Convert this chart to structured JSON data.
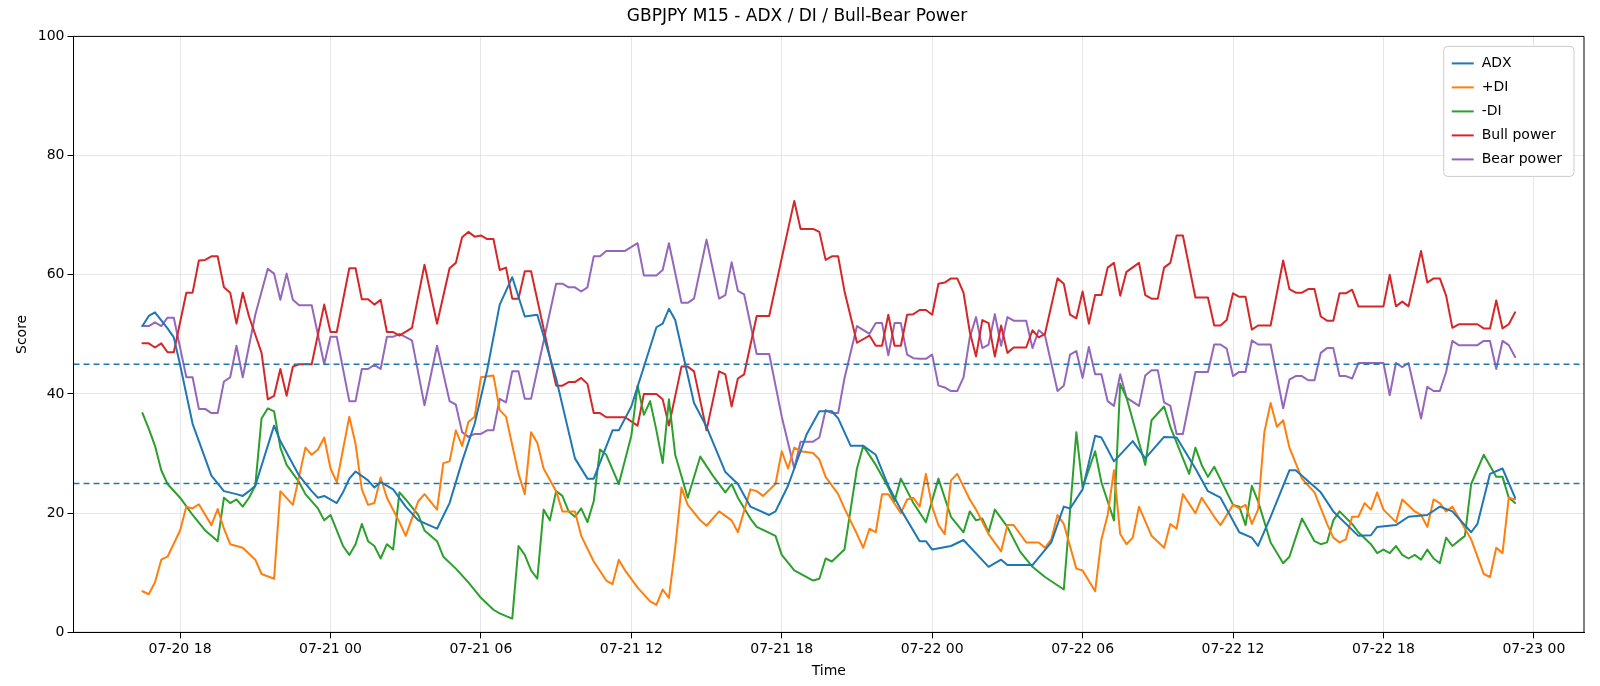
{
  "chart_data": {
    "type": "line",
    "title": "GBPJPY M15 - ADX / DI / Bull-Bear Power",
    "xlabel": "Time",
    "ylabel": "Score",
    "xlim": [
      "--07-20T13:45",
      "--07-23T02:00"
    ],
    "xticks": [
      {
        "value": "--07-20T18:00",
        "label": "07-20 18"
      },
      {
        "value": "--07-21T00:00",
        "label": "07-21 00"
      },
      {
        "value": "--07-21T06:00",
        "label": "07-21 06"
      },
      {
        "value": "--07-21T12:00",
        "label": "07-21 12"
      },
      {
        "value": "--07-21T18:00",
        "label": "07-21 18"
      },
      {
        "value": "--07-22T00:00",
        "label": "07-22 00"
      },
      {
        "value": "--07-22T06:00",
        "label": "07-22 06"
      },
      {
        "value": "--07-22T12:00",
        "label": "07-22 12"
      },
      {
        "value": "--07-22T18:00",
        "label": "07-22 18"
      },
      {
        "value": "--07-23T00:00",
        "label": "07-23 00"
      }
    ],
    "ylim": [
      0,
      100
    ],
    "yticks": [
      0,
      20,
      40,
      60,
      80,
      100
    ],
    "grid": true,
    "legend": "top right",
    "marker": "none",
    "line_style": "solid",
    "ref_lines": [
      {
        "axis": "y",
        "value": 45,
        "color": "#1f77b4",
        "line_style": "dashed"
      },
      {
        "axis": "y",
        "value": 25,
        "color": "#1f77b4",
        "line_style": "dashed"
      }
    ],
    "series": [
      {
        "name": "ADX",
        "color": "#1f77b4",
        "x": [
          "--07-20T16:30",
          "--07-20T16:45",
          "--07-20T17:00",
          "--07-20T17:30",
          "--07-20T17:45",
          "--07-20T18:00",
          "--07-20T18:30",
          "--07-20T19:15",
          "--07-20T19:45",
          "--07-20T20:15",
          "--07-20T20:30",
          "--07-20T20:45",
          "--07-20T21:00",
          "--07-20T21:45",
          "--07-20T22:00",
          "--07-20T22:45",
          "--07-20T23:15",
          "--07-20T23:30",
          "--07-20T23:45",
          "--07-21T00:15",
          "--07-21T00:30",
          "--07-21T00:45",
          "--07-21T01:00",
          "--07-21T01:30",
          "--07-21T01:45",
          "--07-21T02:00",
          "--07-21T02:30",
          "--07-21T03:00",
          "--07-21T03:30",
          "--07-21T04:15",
          "--07-21T04:45",
          "--07-21T05:15",
          "--07-21T05:45",
          "--07-21T06:15",
          "--07-21T06:45",
          "--07-21T07:15",
          "--07-21T07:45",
          "--07-21T08:15",
          "--07-21T09:00",
          "--07-21T09:45",
          "--07-21T10:15",
          "--07-21T10:30",
          "--07-21T11:15",
          "--07-21T11:30",
          "--07-21T12:00",
          "--07-21T13:00",
          "--07-21T13:15",
          "--07-21T13:30",
          "--07-21T13:45",
          "--07-21T14:30",
          "--07-21T15:00",
          "--07-21T15:45",
          "--07-21T16:15",
          "--07-21T16:45",
          "--07-21T17:30",
          "--07-21T17:45",
          "--07-21T18:15",
          "--07-21T19:00",
          "--07-21T19:30",
          "--07-21T20:00",
          "--07-21T20:15",
          "--07-21T20:45",
          "--07-21T21:15",
          "--07-21T21:45",
          "--07-21T22:15",
          "--07-21T22:45",
          "--07-21T23:30",
          "--07-21T23:45",
          "--07-22T00:00",
          "--07-22T00:45",
          "--07-22T01:15",
          "--07-22T02:15",
          "--07-22T02:45",
          "--07-22T03:00",
          "--07-22T04:00",
          "--07-22T04:45",
          "--07-22T05:15",
          "--07-22T05:30",
          "--07-22T06:00",
          "--07-22T06:30",
          "--07-22T06:45",
          "--07-22T07:15",
          "--07-22T08:00",
          "--07-22T08:30",
          "--07-22T09:15",
          "--07-22T09:45",
          "--07-22T10:30",
          "--07-22T11:00",
          "--07-22T11:30",
          "--07-22T12:15",
          "--07-22T12:45",
          "--07-22T13:00",
          "--07-22T13:30",
          "--07-22T14:15",
          "--07-22T14:30",
          "--07-22T15:30",
          "--07-22T16:00",
          "--07-22T17:00",
          "--07-22T17:30",
          "--07-22T17:45",
          "--07-22T18:30",
          "--07-22T19:00",
          "--07-22T19:45",
          "--07-22T20:15",
          "--07-22T20:45",
          "--07-22T21:30",
          "--07-22T21:45",
          "--07-22T22:15",
          "--07-22T22:45",
          "--07-22T23:15"
        ],
        "values": [
          51.4,
          53.1,
          53.7,
          51,
          49.5,
          44.9,
          35,
          26.3,
          23.7,
          23.2,
          22.9,
          23.7,
          24.6,
          34.7,
          32.1,
          26.3,
          23.7,
          22.6,
          22.9,
          21.7,
          23.5,
          25.8,
          27,
          25.5,
          24.3,
          25.2,
          24,
          21.1,
          18.8,
          17.4,
          21.7,
          28.7,
          35,
          44,
          55,
          59.6,
          53,
          53.3,
          42.6,
          29.2,
          25.8,
          25.8,
          33.9,
          33.9,
          37.9,
          51.2,
          51.8,
          54.3,
          52.4,
          38.5,
          34.5,
          26.9,
          24.9,
          21.1,
          19.7,
          20.3,
          24.6,
          33.3,
          37.1,
          37.1,
          35.9,
          31.3,
          31.3,
          29.8,
          24.6,
          20.6,
          15.3,
          15.3,
          13.9,
          14.5,
          15.5,
          11,
          12.2,
          11.3,
          11.3,
          15.1,
          21.1,
          20.8,
          24,
          33,
          32.7,
          28.7,
          32.1,
          29.2,
          32.8,
          32.7,
          27.5,
          23.7,
          22.6,
          16.8,
          15.9,
          14.5,
          19.4,
          27.2,
          27.2,
          23.5,
          20.3,
          16.2,
          16.3,
          17.7,
          18,
          19.4,
          19.7,
          21.1,
          20.3,
          16.8,
          18.2,
          26.6,
          27.5,
          22.6
        ]
      },
      {
        "name": "+DI",
        "color": "#ff7f0e",
        "x": [
          "--07-20T16:30",
          "--07-20T16:45",
          "--07-20T17:00",
          "--07-20T17:15",
          "--07-20T17:30",
          "--07-20T18:00",
          "--07-20T18:15",
          "--07-20T18:30",
          "--07-20T18:45",
          "--07-20T19:15",
          "--07-20T19:30",
          "--07-20T19:45",
          "--07-20T20:00",
          "--07-20T20:30",
          "--07-20T21:00",
          "--07-20T21:15",
          "--07-20T21:45",
          "--07-20T22:00",
          "--07-20T22:30",
          "--07-20T23:00",
          "--07-20T23:15",
          "--07-20T23:30",
          "--07-20T23:45",
          "--07-21T00:00",
          "--07-21T00:15",
          "--07-21T00:45",
          "--07-21T01:00",
          "--07-21T01:15",
          "--07-21T01:30",
          "--07-21T01:45",
          "--07-21T02:00",
          "--07-21T02:15",
          "--07-21T02:45",
          "--07-21T03:00",
          "--07-21T03:30",
          "--07-21T03:45",
          "--07-21T04:15",
          "--07-21T04:30",
          "--07-21T04:45",
          "--07-21T05:00",
          "--07-21T05:15",
          "--07-21T05:30",
          "--07-21T05:45",
          "--07-21T06:00",
          "--07-21T06:30",
          "--07-21T06:45",
          "--07-21T07:00",
          "--07-21T07:30",
          "--07-21T07:45",
          "--07-21T08:00",
          "--07-21T08:15",
          "--07-21T08:30",
          "--07-21T09:00",
          "--07-21T09:15",
          "--07-21T09:45",
          "--07-21T10:00",
          "--07-21T10:30",
          "--07-21T11:00",
          "--07-21T11:15",
          "--07-21T11:30",
          "--07-21T11:45",
          "--07-21T12:15",
          "--07-21T12:45",
          "--07-21T13:00",
          "--07-21T13:15",
          "--07-21T13:30",
          "--07-21T13:45",
          "--07-21T14:00",
          "--07-21T14:15",
          "--07-21T14:45",
          "--07-21T15:00",
          "--07-21T15:30",
          "--07-21T16:00",
          "--07-21T16:15",
          "--07-21T16:45",
          "--07-21T17:00",
          "--07-21T17:15",
          "--07-21T17:45",
          "--07-21T18:00",
          "--07-21T18:15",
          "--07-21T18:30",
          "--07-21T18:45",
          "--07-21T19:15",
          "--07-21T19:30",
          "--07-21T19:45",
          "--07-21T20:15",
          "--07-21T20:30",
          "--07-21T21:00",
          "--07-21T21:15",
          "--07-21T21:30",
          "--07-21T21:45",
          "--07-21T22:00",
          "--07-21T22:15",
          "--07-21T22:45",
          "--07-21T23:00",
          "--07-21T23:15",
          "--07-21T23:30",
          "--07-21T23:45",
          "--07-22T00:00",
          "--07-22T00:15",
          "--07-22T00:30",
          "--07-22T00:45",
          "--07-22T01:00",
          "--07-22T01:30",
          "--07-22T01:45",
          "--07-22T02:15",
          "--07-22T02:45",
          "--07-22T03:00",
          "--07-22T03:15",
          "--07-22T03:45",
          "--07-22T04:15",
          "--07-22T04:30",
          "--07-22T04:45",
          "--07-22T05:00",
          "--07-22T05:15",
          "--07-22T05:45",
          "--07-22T06:00",
          "--07-22T06:30",
          "--07-22T06:45",
          "--07-22T07:00",
          "--07-22T07:15",
          "--07-22T07:30",
          "--07-22T07:45",
          "--07-22T08:00",
          "--07-22T08:15",
          "--07-22T08:45",
          "--07-22T09:15",
          "--07-22T09:30",
          "--07-22T09:45",
          "--07-22T10:00",
          "--07-22T10:30",
          "--07-22T10:45",
          "--07-22T11:15",
          "--07-22T11:30",
          "--07-22T12:00",
          "--07-22T12:15",
          "--07-22T12:30",
          "--07-22T12:45",
          "--07-22T13:00",
          "--07-22T13:15",
          "--07-22T13:30",
          "--07-22T13:45",
          "--07-22T14:00",
          "--07-22T14:15",
          "--07-22T14:45",
          "--07-22T15:15",
          "--07-22T15:45",
          "--07-22T16:00",
          "--07-22T16:15",
          "--07-22T16:30",
          "--07-22T16:45",
          "--07-22T17:00",
          "--07-22T17:15",
          "--07-22T17:30",
          "--07-22T17:45",
          "--07-22T18:00",
          "--07-22T18:30",
          "--07-22T18:45",
          "--07-22T19:15",
          "--07-22T19:30",
          "--07-22T19:45",
          "--07-22T20:00",
          "--07-22T20:15",
          "--07-22T20:30",
          "--07-22T20:45",
          "--07-22T21:30",
          "--07-22T21:45",
          "--07-22T22:00",
          "--07-22T22:15",
          "--07-22T22:30",
          "--07-22T22:45",
          "--07-22T23:00",
          "--07-22T23:15"
        ],
        "values": [
          6.9,
          6.4,
          8.4,
          12.2,
          12.7,
          17.1,
          21.1,
          20.8,
          21.5,
          18,
          20.7,
          17.4,
          14.8,
          14.2,
          12.2,
          9.8,
          9,
          23.7,
          21.4,
          31,
          29.8,
          30.7,
          32.7,
          27.5,
          25.2,
          36.2,
          31.6,
          24,
          21.4,
          21.7,
          26,
          22.6,
          18.5,
          16.2,
          22,
          23.2,
          20.6,
          28.4,
          28.7,
          33.9,
          31.3,
          35.3,
          36.2,
          42.8,
          43.1,
          37.3,
          36.2,
          26.6,
          23.2,
          33.6,
          31.8,
          27.5,
          23.7,
          20.3,
          20.3,
          16.2,
          11.9,
          8.7,
          8.1,
          12.2,
          10.4,
          7.5,
          5.2,
          4.6,
          7.2,
          5.8,
          14.2,
          24.3,
          21.4,
          18.8,
          17.9,
          20.3,
          18.8,
          16.8,
          24,
          23.7,
          22.9,
          24.9,
          30.4,
          27.5,
          31,
          30.4,
          30.1,
          29,
          26.1,
          23.2,
          20.8,
          16.5,
          14.2,
          17.4,
          16.8,
          23.2,
          23.2,
          20,
          22.3,
          22.6,
          21.1,
          26.6,
          21.1,
          18,
          16.5,
          25.5,
          26.6,
          22.3,
          20.6,
          16.5,
          13.6,
          18,
          18,
          15.1,
          15.1,
          14.2,
          15.6,
          19.7,
          18.2,
          10.7,
          10.4,
          6.9,
          15.6,
          19.7,
          27.2,
          16.5,
          14.8,
          15.9,
          21.1,
          16.2,
          14.2,
          18.2,
          17.4,
          23.2,
          20,
          22.6,
          19.4,
          18,
          21.4,
          20.8,
          21.4,
          18.2,
          20.6,
          33.6,
          38.5,
          34.5,
          35.6,
          31,
          25.8,
          23.5,
          18.2,
          15.9,
          15.1,
          15.6,
          19.4,
          19.4,
          21.7,
          20.6,
          23.5,
          20.6,
          18.5,
          22.3,
          20.3,
          19.7,
          17.7,
          22.3,
          21.7,
          20.3,
          21.1,
          15.6,
          12.7,
          9.8,
          9.3,
          14.2,
          13.3,
          22.6,
          22.3
        ]
      },
      {
        "name": "-DI",
        "color": "#2ca02c",
        "x": [
          "--07-20T16:30",
          "--07-20T16:45",
          "--07-20T17:00",
          "--07-20T17:15",
          "--07-20T17:30",
          "--07-20T18:00",
          "--07-20T18:30",
          "--07-20T19:00",
          "--07-20T19:15",
          "--07-20T19:30",
          "--07-20T19:45",
          "--07-20T20:00",
          "--07-20T20:15",
          "--07-20T20:30",
          "--07-20T20:45",
          "--07-20T21:00",
          "--07-20T21:15",
          "--07-20T21:30",
          "--07-20T21:45",
          "--07-20T22:00",
          "--07-20T22:15",
          "--07-20T22:45",
          "--07-20T23:00",
          "--07-20T23:30",
          "--07-20T23:45",
          "--07-21T00:00",
          "--07-21T00:30",
          "--07-21T00:45",
          "--07-21T01:00",
          "--07-21T01:15",
          "--07-21T01:30",
          "--07-21T01:45",
          "--07-21T02:00",
          "--07-21T02:15",
          "--07-21T02:30",
          "--07-21T02:45",
          "--07-21T03:00",
          "--07-21T03:30",
          "--07-21T03:45",
          "--07-21T04:15",
          "--07-21T04:30",
          "--07-21T05:00",
          "--07-21T05:30",
          "--07-21T06:00",
          "--07-21T06:30",
          "--07-21T06:45",
          "--07-21T07:15",
          "--07-21T07:30",
          "--07-21T07:45",
          "--07-21T08:00",
          "--07-21T08:15",
          "--07-21T08:30",
          "--07-21T08:45",
          "--07-21T09:00",
          "--07-21T09:15",
          "--07-21T09:30",
          "--07-21T09:45",
          "--07-21T10:00",
          "--07-21T10:15",
          "--07-21T10:30",
          "--07-21T10:45",
          "--07-21T11:00",
          "--07-21T11:30",
          "--07-21T12:00",
          "--07-21T12:15",
          "--07-21T12:30",
          "--07-21T12:45",
          "--07-21T13:00",
          "--07-21T13:15",
          "--07-21T13:30",
          "--07-21T13:45",
          "--07-21T14:15",
          "--07-21T14:45",
          "--07-21T15:15",
          "--07-21T15:45",
          "--07-21T16:00",
          "--07-21T16:15",
          "--07-21T16:45",
          "--07-21T17:00",
          "--07-21T17:45",
          "--07-21T18:00",
          "--07-21T18:30",
          "--07-21T19:15",
          "--07-21T19:30",
          "--07-21T19:45",
          "--07-21T20:00",
          "--07-21T20:30",
          "--07-21T21:00",
          "--07-21T21:15",
          "--07-21T21:45",
          "--07-21T22:15",
          "--07-21T22:30",
          "--07-21T22:45",
          "--07-21T23:15",
          "--07-21T23:45",
          "--07-22T00:15",
          "--07-22T00:45",
          "--07-22T01:15",
          "--07-22T01:30",
          "--07-22T01:45",
          "--07-22T02:00",
          "--07-22T02:15",
          "--07-22T02:30",
          "--07-22T03:00",
          "--07-22T03:30",
          "--07-22T04:00",
          "--07-22T04:30",
          "--07-22T05:15",
          "--07-22T05:45",
          "--07-22T06:00",
          "--07-22T06:30",
          "--07-22T06:45",
          "--07-22T07:15",
          "--07-22T07:30",
          "--07-22T07:45",
          "--07-22T08:30",
          "--07-22T08:45",
          "--07-22T09:15",
          "--07-22T09:30",
          "--07-22T10:15",
          "--07-22T10:30",
          "--07-22T10:45",
          "--07-22T11:00",
          "--07-22T11:15",
          "--07-22T12:00",
          "--07-22T12:15",
          "--07-22T12:30",
          "--07-22T12:45",
          "--07-22T13:00",
          "--07-22T13:30",
          "--07-22T14:00",
          "--07-22T14:15",
          "--07-22T14:45",
          "--07-22T15:15",
          "--07-22T15:30",
          "--07-22T15:45",
          "--07-22T16:00",
          "--07-22T16:15",
          "--07-22T16:45",
          "--07-22T17:00",
          "--07-22T17:30",
          "--07-22T17:45",
          "--07-22T18:00",
          "--07-22T18:15",
          "--07-22T18:30",
          "--07-22T18:45",
          "--07-22T19:00",
          "--07-22T19:15",
          "--07-22T19:30",
          "--07-22T19:45",
          "--07-22T20:00",
          "--07-22T20:15",
          "--07-22T20:30",
          "--07-22T20:45",
          "--07-22T21:15",
          "--07-22T21:30",
          "--07-22T22:00",
          "--07-22T22:30",
          "--07-22T22:45",
          "--07-22T23:00",
          "--07-22T23:15"
        ],
        "values": [
          36.8,
          34.2,
          31.3,
          27.2,
          24.9,
          22.6,
          19.7,
          17.1,
          16.2,
          15.3,
          22.6,
          21.7,
          22.3,
          21.1,
          22.6,
          24.6,
          35.9,
          37.6,
          37.1,
          31,
          28.1,
          25.2,
          23.2,
          20.8,
          18.8,
          19.7,
          14.5,
          13,
          14.8,
          18.2,
          15.3,
          14.5,
          12.4,
          14.8,
          13.9,
          23.5,
          22.3,
          19.7,
          17.1,
          15.3,
          12.7,
          10.7,
          8.4,
          5.8,
          3.8,
          3.2,
          2.3,
          14.5,
          13,
          10.4,
          9,
          20.6,
          18.8,
          23.7,
          22.9,
          20.3,
          19.4,
          20.8,
          18.5,
          22,
          30.7,
          29.8,
          24.9,
          33,
          41.4,
          36.5,
          38.8,
          33.9,
          28.4,
          39.1,
          29.8,
          22.6,
          29.5,
          26.3,
          23.5,
          24.9,
          22.6,
          19.1,
          17.7,
          16.2,
          13,
          10.4,
          8.7,
          9,
          12.4,
          11.9,
          13.9,
          27.5,
          31.3,
          28.1,
          24.3,
          22,
          25.8,
          21.7,
          18.5,
          25.8,
          19.4,
          16.8,
          20.3,
          18.8,
          19.1,
          16.8,
          20.6,
          17.7,
          13.6,
          11,
          9.3,
          7.2,
          33.6,
          24.3,
          30.4,
          25.2,
          18.8,
          41.7,
          39.4,
          28.1,
          35.6,
          37.9,
          34.5,
          26.6,
          31,
          28.1,
          26.1,
          27.8,
          21.4,
          21.1,
          18,
          24.6,
          22,
          15.1,
          11.6,
          12.7,
          19.1,
          15.3,
          14.8,
          15.1,
          18.8,
          20.3,
          18.2,
          16.8,
          14.8,
          13.3,
          13.9,
          13.3,
          14.5,
          13,
          12.4,
          13,
          12.2,
          13.9,
          12.4,
          11.6,
          15.9,
          14.5,
          16.2,
          24.9,
          29.8,
          26.1,
          26.1,
          22.6,
          21.7
        ]
      },
      {
        "name": "Bull power",
        "color": "#d62728",
        "x": [
          "--07-20T16:30",
          "--07-20T16:45",
          "--07-20T17:00",
          "--07-20T17:15",
          "--07-20T17:30",
          "--07-20T17:45",
          "--07-20T18:15",
          "--07-20T18:30",
          "--07-20T18:45",
          "--07-20T19:00",
          "--07-20T19:15",
          "--07-20T19:30",
          "--07-20T19:45",
          "--07-20T20:00",
          "--07-20T20:15",
          "--07-20T20:30",
          "--07-20T20:45",
          "--07-20T21:15",
          "--07-20T21:30",
          "--07-20T21:45",
          "--07-20T22:00",
          "--07-20T22:15",
          "--07-20T22:30",
          "--07-20T22:45",
          "--07-20T23:15",
          "--07-20T23:45",
          "--07-21T00:00",
          "--07-21T00:15",
          "--07-21T00:45",
          "--07-21T01:00",
          "--07-21T01:15",
          "--07-21T01:30",
          "--07-21T01:45",
          "--07-21T02:00",
          "--07-21T02:15",
          "--07-21T02:30",
          "--07-21T02:45",
          "--07-21T03:15",
          "--07-21T03:45",
          "--07-21T04:15",
          "--07-21T04:45",
          "--07-21T05:00",
          "--07-21T05:15",
          "--07-21T05:30",
          "--07-21T05:45",
          "--07-21T06:00",
          "--07-21T06:15",
          "--07-21T06:30",
          "--07-21T06:45",
          "--07-21T07:00",
          "--07-21T07:15",
          "--07-21T07:30",
          "--07-21T07:45",
          "--07-21T08:00",
          "--07-21T09:00",
          "--07-21T09:15",
          "--07-21T09:30",
          "--07-21T09:45",
          "--07-21T10:00",
          "--07-21T10:15",
          "--07-21T10:30",
          "--07-21T10:45",
          "--07-21T11:00",
          "--07-21T11:45",
          "--07-21T12:15",
          "--07-21T12:30",
          "--07-21T13:00",
          "--07-21T13:15",
          "--07-21T13:30",
          "--07-21T14:00",
          "--07-21T14:15",
          "--07-21T14:30",
          "--07-21T15:00",
          "--07-21T15:30",
          "--07-21T15:45",
          "--07-21T16:00",
          "--07-21T16:15",
          "--07-21T16:30",
          "--07-21T17:00",
          "--07-21T17:30",
          "--07-21T18:00",
          "--07-21T18:30",
          "--07-21T18:45",
          "--07-21T19:15",
          "--07-21T19:30",
          "--07-21T19:45",
          "--07-21T20:00",
          "--07-21T20:15",
          "--07-21T20:30",
          "--07-21T21:00",
          "--07-21T21:30",
          "--07-21T21:45",
          "--07-21T22:00",
          "--07-21T22:15",
          "--07-21T22:30",
          "--07-21T22:45",
          "--07-21T23:00",
          "--07-21T23:15",
          "--07-21T23:30",
          "--07-21T23:45",
          "--07-22T00:00",
          "--07-22T00:15",
          "--07-22T00:30",
          "--07-22T00:45",
          "--07-22T01:00",
          "--07-22T01:15",
          "--07-22T01:30",
          "--07-22T01:45",
          "--07-22T02:00",
          "--07-22T02:15",
          "--07-22T02:30",
          "--07-22T02:45",
          "--07-22T03:00",
          "--07-22T03:15",
          "--07-22T03:45",
          "--07-22T04:00",
          "--07-22T04:15",
          "--07-22T04:30",
          "--07-22T05:00",
          "--07-22T05:15",
          "--07-22T05:30",
          "--07-22T05:45",
          "--07-22T06:00",
          "--07-22T06:15",
          "--07-22T06:30",
          "--07-22T06:45",
          "--07-22T07:00",
          "--07-22T07:15",
          "--07-22T07:30",
          "--07-22T07:45",
          "--07-22T08:15",
          "--07-22T08:30",
          "--07-22T08:45",
          "--07-22T09:00",
          "--07-22T09:15",
          "--07-22T09:30",
          "--07-22T09:45",
          "--07-22T10:00",
          "--07-22T10:30",
          "--07-22T11:00",
          "--07-22T11:15",
          "--07-22T11:30",
          "--07-22T11:45",
          "--07-22T12:00",
          "--07-22T12:15",
          "--07-22T12:30",
          "--07-22T12:45",
          "--07-22T13:00",
          "--07-22T13:30",
          "--07-22T14:00",
          "--07-22T14:15",
          "--07-22T14:30",
          "--07-22T14:45",
          "--07-22T15:00",
          "--07-22T15:15",
          "--07-22T15:30",
          "--07-22T15:45",
          "--07-22T16:00",
          "--07-22T16:15",
          "--07-22T16:30",
          "--07-22T16:45",
          "--07-22T17:00",
          "--07-22T18:00",
          "--07-22T18:15",
          "--07-22T18:30",
          "--07-22T18:45",
          "--07-22T19:00",
          "--07-22T19:30",
          "--07-22T19:45",
          "--07-22T20:00",
          "--07-22T20:15",
          "--07-22T20:30",
          "--07-22T20:45",
          "--07-22T21:00",
          "--07-22T21:45",
          "--07-22T22:00",
          "--07-22T22:15",
          "--07-22T22:30",
          "--07-22T22:45",
          "--07-22T23:00",
          "--07-22T23:15"
        ],
        "values": [
          48.5,
          48.5,
          47.8,
          48.5,
          47,
          47,
          57,
          57,
          62.4,
          62.5,
          63.1,
          63.1,
          57.9,
          57,
          51.8,
          57,
          53,
          46.9,
          39.1,
          39.7,
          44.2,
          39.7,
          44.6,
          45,
          45,
          55,
          50.4,
          50.4,
          61.1,
          61.1,
          55.9,
          55.9,
          55,
          55.8,
          50.4,
          50.4,
          49.8,
          51.1,
          61.7,
          51.8,
          61.1,
          62,
          66.3,
          67.2,
          66.4,
          66.6,
          66,
          66,
          60.8,
          61.2,
          56,
          56,
          60.6,
          60.6,
          41.4,
          41.4,
          42,
          42,
          42.7,
          41.7,
          36.8,
          36.8,
          36.1,
          36.1,
          34.7,
          40,
          40,
          39.1,
          34.7,
          44.6,
          44.6,
          43.8,
          33.9,
          43.8,
          43.3,
          37.9,
          42.6,
          43.3,
          53.1,
          53.1,
          62.8,
          72.4,
          67.7,
          67.7,
          67.2,
          62.5,
          63.1,
          63.1,
          57.3,
          48.6,
          49.8,
          48.1,
          48.1,
          53.3,
          48.1,
          48.1,
          53.3,
          53.4,
          54.1,
          54.1,
          53.3,
          58.5,
          58.7,
          59.4,
          59.4,
          57,
          50.4,
          46.3,
          52.4,
          51.9,
          46.3,
          51.5,
          46.9,
          47.8,
          47.8,
          50.7,
          49.5,
          50.1,
          59.4,
          58.5,
          53.3,
          52.7,
          57.2,
          51.8,
          56.6,
          56.6,
          61.2,
          62,
          56.5,
          60.5,
          62,
          56.6,
          56,
          56,
          61.2,
          62,
          66.6,
          66.6,
          56.2,
          56.2,
          51.5,
          51.5,
          52.4,
          56.9,
          56.3,
          56.3,
          50.8,
          51.5,
          51.5,
          62.4,
          57.6,
          57,
          57,
          57.6,
          57.6,
          53,
          52.3,
          52.3,
          56.9,
          56.9,
          57.5,
          54.7,
          54.7,
          60,
          54.7,
          55.5,
          54.7,
          64,
          58.7,
          59.4,
          59.4,
          56.5,
          51.1,
          51.7,
          51.7,
          51,
          51,
          55.7,
          51,
          51.7,
          53.7
        ]
      },
      {
        "name": "Bear power",
        "color": "#9467bd",
        "x": [
          "--07-20T16:30",
          "--07-20T16:45",
          "--07-20T17:00",
          "--07-20T17:15",
          "--07-20T17:30",
          "--07-20T17:45",
          "--07-20T18:15",
          "--07-20T18:30",
          "--07-20T18:45",
          "--07-20T19:00",
          "--07-20T19:15",
          "--07-20T19:30",
          "--07-20T19:45",
          "--07-20T20:00",
          "--07-20T20:15",
          "--07-20T20:30",
          "--07-20T21:00",
          "--07-20T21:30",
          "--07-20T21:45",
          "--07-20T22:00",
          "--07-20T22:15",
          "--07-20T22:30",
          "--07-20T22:45",
          "--07-20T23:15",
          "--07-20T23:45",
          "--07-21T00:00",
          "--07-21T00:15",
          "--07-21T00:45",
          "--07-21T01:00",
          "--07-21T01:15",
          "--07-21T01:30",
          "--07-21T01:45",
          "--07-21T02:00",
          "--07-21T02:15",
          "--07-21T02:30",
          "--07-21T02:45",
          "--07-21T03:15",
          "--07-21T03:45",
          "--07-21T04:15",
          "--07-21T04:45",
          "--07-21T05:00",
          "--07-21T05:15",
          "--07-21T05:30",
          "--07-21T05:45",
          "--07-21T06:00",
          "--07-21T06:15",
          "--07-21T06:30",
          "--07-21T06:45",
          "--07-21T07:00",
          "--07-21T07:15",
          "--07-21T07:30",
          "--07-21T07:45",
          "--07-21T08:00",
          "--07-21T09:00",
          "--07-21T09:15",
          "--07-21T09:30",
          "--07-21T09:45",
          "--07-21T10:00",
          "--07-21T10:15",
          "--07-21T10:30",
          "--07-21T10:45",
          "--07-21T11:00",
          "--07-21T11:45",
          "--07-21T12:15",
          "--07-21T12:30",
          "--07-21T13:00",
          "--07-21T13:15",
          "--07-21T13:30",
          "--07-21T14:00",
          "--07-21T14:15",
          "--07-21T14:30",
          "--07-21T15:00",
          "--07-21T15:30",
          "--07-21T15:45",
          "--07-21T16:00",
          "--07-21T16:15",
          "--07-21T16:30",
          "--07-21T17:00",
          "--07-21T17:30",
          "--07-21T18:00",
          "--07-21T18:30",
          "--07-21T18:45",
          "--07-21T19:15",
          "--07-21T19:30",
          "--07-21T19:45",
          "--07-21T20:00",
          "--07-21T20:15",
          "--07-21T20:30",
          "--07-21T21:00",
          "--07-21T21:30",
          "--07-21T21:45",
          "--07-21T22:00",
          "--07-21T22:15",
          "--07-21T22:30",
          "--07-21T22:45",
          "--07-21T23:00",
          "--07-21T23:15",
          "--07-21T23:30",
          "--07-21T23:45",
          "--07-22T00:00",
          "--07-22T00:15",
          "--07-22T00:30",
          "--07-22T00:45",
          "--07-22T01:00",
          "--07-22T01:15",
          "--07-22T01:30",
          "--07-22T01:45",
          "--07-22T02:00",
          "--07-22T02:15",
          "--07-22T02:30",
          "--07-22T02:45",
          "--07-22T03:00",
          "--07-22T03:15",
          "--07-22T03:45",
          "--07-22T04:00",
          "--07-22T04:15",
          "--07-22T04:30",
          "--07-22T05:00",
          "--07-22T05:15",
          "--07-22T05:30",
          "--07-22T05:45",
          "--07-22T06:00",
          "--07-22T06:15",
          "--07-22T06:30",
          "--07-22T06:45",
          "--07-22T07:00",
          "--07-22T07:15",
          "--07-22T07:30",
          "--07-22T07:45",
          "--07-22T08:15",
          "--07-22T08:30",
          "--07-22T08:45",
          "--07-22T09:00",
          "--07-22T09:15",
          "--07-22T09:30",
          "--07-22T09:45",
          "--07-22T10:00",
          "--07-22T10:30",
          "--07-22T11:00",
          "--07-22T11:15",
          "--07-22T11:30",
          "--07-22T11:45",
          "--07-22T12:00",
          "--07-22T12:15",
          "--07-22T12:30",
          "--07-22T12:45",
          "--07-22T13:00",
          "--07-22T13:30",
          "--07-22T14:00",
          "--07-22T14:15",
          "--07-22T14:30",
          "--07-22T14:45",
          "--07-22T15:00",
          "--07-22T15:15",
          "--07-22T15:30",
          "--07-22T15:45",
          "--07-22T16:00",
          "--07-22T16:15",
          "--07-22T16:30",
          "--07-22T16:45",
          "--07-22T17:00",
          "--07-22T18:00",
          "--07-22T18:15",
          "--07-22T18:30",
          "--07-22T18:45",
          "--07-22T19:00",
          "--07-22T19:30",
          "--07-22T19:45",
          "--07-22T20:00",
          "--07-22T20:15",
          "--07-22T20:30",
          "--07-22T20:45",
          "--07-22T21:00",
          "--07-22T21:45",
          "--07-22T22:00",
          "--07-22T22:15",
          "--07-22T22:30",
          "--07-22T22:45",
          "--07-22T23:00",
          "--07-22T23:15"
        ],
        "values": [
          51.4,
          51.4,
          52,
          51.4,
          52.8,
          52.8,
          42.8,
          42.8,
          37.5,
          37.5,
          36.8,
          36.8,
          42.1,
          42.8,
          48.1,
          42.8,
          53.3,
          61,
          60.2,
          55.8,
          60.2,
          55.8,
          54.9,
          54.9,
          45,
          49.6,
          49.6,
          38.8,
          38.8,
          44.2,
          44.2,
          44.9,
          44.2,
          49.6,
          49.6,
          50.1,
          49,
          38.1,
          48.1,
          38.8,
          38.2,
          33.6,
          32.8,
          33.3,
          33.3,
          33.9,
          33.9,
          39.2,
          38.6,
          43.8,
          43.8,
          39.2,
          39.2,
          58.5,
          58.5,
          57.9,
          57.9,
          57.2,
          57.9,
          63.1,
          63.1,
          64,
          64,
          65.3,
          59.9,
          59.9,
          60.8,
          65.3,
          55.3,
          55.3,
          56,
          65.9,
          56,
          56.6,
          62.1,
          57.3,
          56.7,
          46.7,
          46.7,
          36.2,
          27.5,
          32,
          32,
          32.7,
          37.3,
          36.8,
          36.8,
          42.6,
          51.4,
          50.1,
          51.9,
          51.9,
          46.5,
          51.9,
          51.9,
          46.6,
          46,
          45.9,
          45.9,
          46.6,
          41.4,
          41.1,
          40.5,
          40.5,
          42.8,
          49.5,
          52.9,
          47.7,
          48.3,
          53.4,
          48.1,
          52.9,
          52.3,
          52.3,
          47.7,
          50.7,
          49.8,
          40.5,
          41.4,
          46.6,
          47.2,
          42.7,
          47.9,
          43.3,
          43.3,
          38.8,
          38,
          43.3,
          39.4,
          38,
          43.1,
          44,
          44,
          38.6,
          38,
          33.3,
          33.3,
          43.7,
          43.7,
          48.3,
          48.3,
          47.6,
          43,
          43.7,
          43.7,
          49,
          48.3,
          48.3,
          37.6,
          42.4,
          43,
          43,
          42.3,
          42.3,
          46.9,
          47.7,
          47.7,
          43,
          43,
          42.6,
          45.2,
          45.2,
          39.8,
          45.2,
          44.5,
          45.2,
          35.9,
          41.2,
          40.5,
          40.5,
          43.7,
          48.9,
          48.2,
          48.2,
          48.9,
          48.9,
          44.2,
          48.9,
          48.2,
          46.2
        ]
      }
    ]
  }
}
